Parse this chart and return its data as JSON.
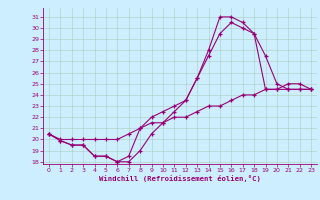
{
  "xlabel": "Windchill (Refroidissement éolien,°C)",
  "bg_color": "#cceeff",
  "line_color": "#990077",
  "grid_color": "#aaccbb",
  "ylim": [
    17.8,
    31.8
  ],
  "xlim": [
    -0.5,
    23.5
  ],
  "yticks": [
    18,
    19,
    20,
    21,
    22,
    23,
    24,
    25,
    26,
    27,
    28,
    29,
    30,
    31
  ],
  "xticks": [
    0,
    1,
    2,
    3,
    4,
    5,
    6,
    7,
    8,
    9,
    10,
    11,
    12,
    13,
    14,
    15,
    16,
    17,
    18,
    19,
    20,
    21,
    22,
    23
  ],
  "line1_x": [
    0,
    1,
    2,
    3,
    4,
    5,
    6,
    7,
    8,
    9,
    10,
    11,
    12,
    13,
    14,
    15,
    16,
    17,
    18,
    19,
    20,
    21,
    22,
    23
  ],
  "line1_y": [
    20.5,
    19.9,
    19.5,
    19.5,
    18.5,
    18.5,
    18.0,
    18.0,
    19.0,
    20.5,
    21.5,
    22.5,
    23.5,
    25.5,
    28.0,
    31.0,
    31.0,
    30.5,
    29.5,
    24.5,
    24.5,
    25.0,
    25.0,
    24.5
  ],
  "line2_x": [
    0,
    1,
    2,
    3,
    4,
    5,
    6,
    7,
    8,
    9,
    10,
    11,
    12,
    13,
    14,
    15,
    16,
    17,
    18,
    19,
    20,
    21,
    22,
    23
  ],
  "line2_y": [
    20.5,
    19.9,
    19.5,
    19.5,
    18.5,
    18.5,
    18.0,
    18.5,
    21.0,
    22.0,
    22.5,
    23.0,
    23.5,
    25.5,
    27.5,
    29.5,
    30.5,
    30.0,
    29.5,
    27.5,
    25.0,
    24.5,
    24.5,
    24.5
  ],
  "line3_x": [
    0,
    1,
    2,
    3,
    4,
    5,
    6,
    7,
    8,
    9,
    10,
    11,
    12,
    13,
    14,
    15,
    16,
    17,
    18,
    19,
    20,
    21,
    22,
    23
  ],
  "line3_y": [
    20.5,
    20.0,
    20.0,
    20.0,
    20.0,
    20.0,
    20.0,
    20.5,
    21.0,
    21.5,
    21.5,
    22.0,
    22.0,
    22.5,
    23.0,
    23.0,
    23.5,
    24.0,
    24.0,
    24.5,
    24.5,
    24.5,
    24.5,
    24.5
  ]
}
